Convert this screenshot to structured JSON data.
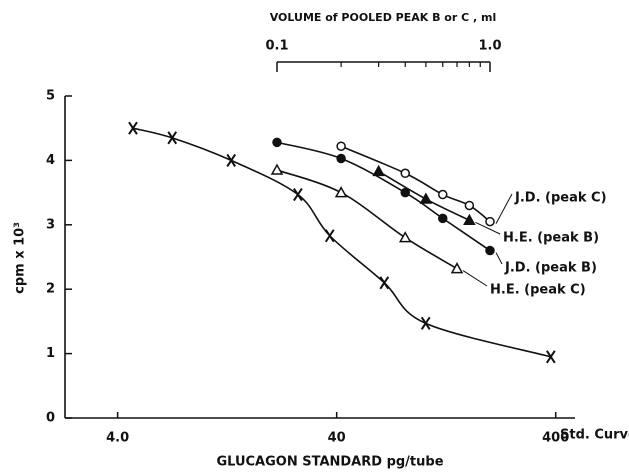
{
  "chart_data": {
    "type": "line",
    "title": "VOLUME of POOLED PEAK B or C , ml",
    "x_label": "GLUCAGON  STANDARD     pg/tube",
    "y_label": "cpm x 10³",
    "x_scale": "log",
    "xlim": [
      2.3,
      490
    ],
    "xticks": [
      {
        "value": 4,
        "label": "4.0"
      },
      40,
      400
    ],
    "x2_scale": "log",
    "x2lim": [
      0.1,
      1.0
    ],
    "x2ticks": [
      {
        "value": 0.1,
        "label": "0.1"
      },
      {
        "value": 1.0,
        "label": "1.0"
      }
    ],
    "x2minor": [
      0.2,
      0.3,
      0.4,
      0.5,
      0.6,
      0.7,
      0.8,
      0.9
    ],
    "ylim": [
      0,
      5
    ],
    "yticks": [
      0,
      1,
      2,
      3,
      4,
      5
    ],
    "series": [
      {
        "name": "Std. Curve",
        "color": "#111",
        "marker": "x",
        "axis": "x",
        "x": [
          4.7,
          7.1,
          13.2,
          26.6,
          37.2,
          66,
          102,
          380
        ],
        "values": [
          4.5,
          4.35,
          4.0,
          3.47,
          2.83,
          2.1,
          1.47,
          0.95
        ]
      },
      {
        "name": "J.D. (peak C)",
        "color": "#111",
        "marker": "open-circle",
        "axis": "x2",
        "x": [
          0.2,
          0.4,
          0.6,
          0.8,
          1.0
        ],
        "values": [
          4.22,
          3.8,
          3.47,
          3.3,
          3.05
        ]
      },
      {
        "name": "H.E. (peak B)",
        "color": "#111",
        "marker": "filled-triangle",
        "axis": "x2",
        "x": [
          0.3,
          0.5,
          0.8
        ],
        "values": [
          3.83,
          3.4,
          3.07
        ]
      },
      {
        "name": "J.D. (peak B)",
        "color": "#111",
        "marker": "filled-circle",
        "axis": "x2",
        "x": [
          0.1,
          0.2,
          0.4,
          0.6,
          1.0
        ],
        "values": [
          4.28,
          4.03,
          3.5,
          3.1,
          2.6
        ]
      },
      {
        "name": "H.E. (peak C)",
        "color": "#111",
        "marker": "open-triangle",
        "axis": "x2",
        "x": [
          0.1,
          0.2,
          0.4,
          0.7
        ],
        "values": [
          3.85,
          3.5,
          2.8,
          2.32
        ]
      }
    ]
  }
}
